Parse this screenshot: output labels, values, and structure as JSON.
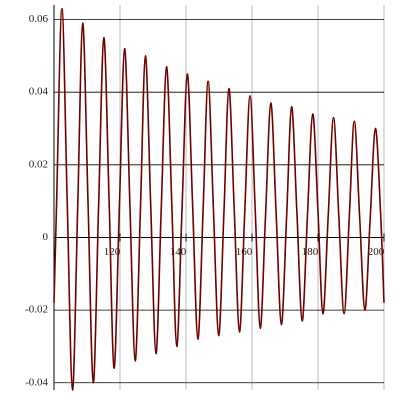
{
  "chart_data": {
    "type": "line",
    "color": "#6e0000",
    "grid": true,
    "xlim": [
      100,
      200
    ],
    "ylim": [
      -0.042,
      0.064
    ],
    "xticks": [
      120,
      140,
      160,
      180,
      200
    ],
    "yticks": [
      -0.04,
      -0.02,
      0,
      0.02,
      0.04,
      0.06
    ],
    "x": [
      100.0,
      100.8,
      102.4,
      104.0,
      105.6,
      107.2,
      108.7,
      110.3,
      111.9,
      113.5,
      115.1,
      116.7,
      118.2,
      119.8,
      121.4,
      123.0,
      124.6,
      126.2,
      127.7,
      129.3,
      130.9,
      132.5,
      134.1,
      135.7,
      137.2,
      138.8,
      140.4,
      142.0,
      143.6,
      145.2,
      146.7,
      148.3,
      149.9,
      151.5,
      153.0,
      154.6,
      156.2,
      157.8,
      159.4,
      161.0,
      162.5,
      164.1,
      165.7,
      167.3,
      168.9,
      170.5,
      172.0,
      173.6,
      175.2,
      176.8,
      178.4,
      180.0,
      181.5,
      183.1,
      184.7,
      186.3,
      187.9,
      189.5,
      191.0,
      192.6,
      194.2,
      195.8,
      197.4,
      199.0,
      200.0
    ],
    "values": [
      -0.018,
      0.01,
      0.063,
      0.01,
      -0.042,
      0.009,
      0.059,
      0.01,
      -0.04,
      0.008,
      0.055,
      0.01,
      -0.036,
      0.008,
      0.052,
      0.009,
      -0.034,
      0.008,
      0.05,
      0.009,
      -0.032,
      0.008,
      0.047,
      0.009,
      -0.03,
      0.008,
      0.045,
      0.009,
      -0.028,
      0.008,
      0.043,
      0.008,
      -0.027,
      0.007,
      0.041,
      0.008,
      -0.026,
      0.007,
      0.039,
      0.007,
      -0.025,
      0.006,
      0.037,
      0.007,
      -0.024,
      0.006,
      0.036,
      0.007,
      -0.023,
      0.006,
      0.034,
      0.007,
      -0.021,
      0.006,
      0.033,
      0.006,
      -0.021,
      0.006,
      0.032,
      0.006,
      -0.02,
      0.005,
      0.03,
      0.006,
      -0.018
    ]
  }
}
